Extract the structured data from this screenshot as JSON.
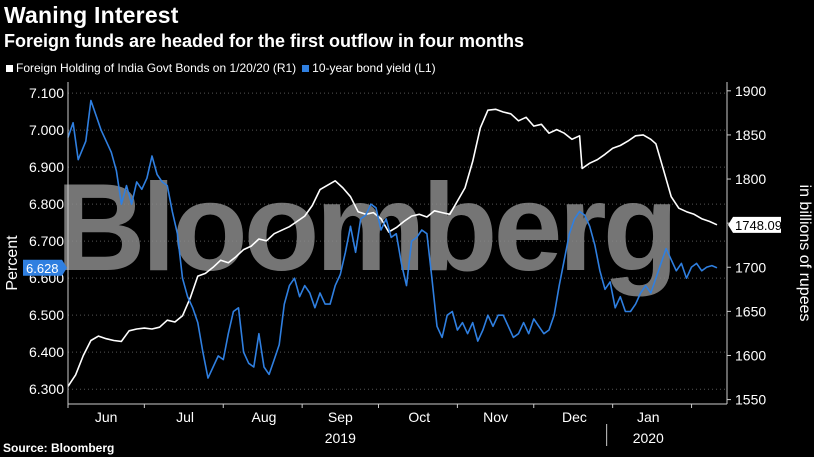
{
  "title": "Waning Interest",
  "subtitle": "Foreign funds are headed for the first outflow in four months",
  "source": "Source: Bloomberg",
  "watermark": "Bloomberg",
  "colors": {
    "background": "#000000",
    "holdings": "#ffffff",
    "yield": "#2f7fe0",
    "callout_bg": "#ffffff"
  },
  "chart_data": {
    "type": "line",
    "x_months": [
      "Jun",
      "Jul",
      "Aug",
      "Sep",
      "Oct",
      "Nov",
      "Dec",
      "Jan"
    ],
    "x_years": [
      "2019",
      "2020"
    ],
    "left_axis": {
      "label": "Percent",
      "ylim": [
        6.26,
        7.13
      ],
      "ticks": [
        "7.100",
        "7.000",
        "6.900",
        "6.800",
        "6.700",
        "6.600",
        "6.500",
        "6.400",
        "6.300"
      ],
      "tick_values": [
        7.1,
        7.0,
        6.9,
        6.8,
        6.7,
        6.6,
        6.5,
        6.4,
        6.3
      ]
    },
    "right_axis": {
      "label": "in billions of rupees",
      "ylim": [
        1545,
        1910
      ],
      "ticks": [
        "1900",
        "1850",
        "1800",
        "1750",
        "1700",
        "1650",
        "1600",
        "1550"
      ],
      "tick_values": [
        1900,
        1850,
        1800,
        1750,
        1700,
        1650,
        1600,
        1550
      ]
    },
    "x_range_days": [
      0,
      232
    ],
    "series": [
      {
        "name": "Foreign Holding of India Govt Bonds on 1/20/20 (R1)",
        "axis": "right",
        "last_value_label": "1748.09",
        "points": [
          [
            0,
            1565
          ],
          [
            3,
            1578
          ],
          [
            6,
            1600
          ],
          [
            9,
            1617
          ],
          [
            12,
            1622
          ],
          [
            15,
            1619
          ],
          [
            18,
            1617
          ],
          [
            21,
            1616
          ],
          [
            24,
            1628
          ],
          [
            27,
            1630
          ],
          [
            30,
            1631
          ],
          [
            33,
            1630
          ],
          [
            36,
            1632
          ],
          [
            39,
            1640
          ],
          [
            42,
            1638
          ],
          [
            45,
            1645
          ],
          [
            48,
            1665
          ],
          [
            51,
            1690
          ],
          [
            54,
            1693
          ],
          [
            57,
            1700
          ],
          [
            60,
            1708
          ],
          [
            63,
            1705
          ],
          [
            66,
            1712
          ],
          [
            69,
            1720
          ],
          [
            72,
            1724
          ],
          [
            75,
            1732
          ],
          [
            78,
            1730
          ],
          [
            81,
            1738
          ],
          [
            84,
            1742
          ],
          [
            87,
            1746
          ],
          [
            90,
            1752
          ],
          [
            93,
            1758
          ],
          [
            96,
            1770
          ],
          [
            99,
            1788
          ],
          [
            102,
            1793
          ],
          [
            105,
            1798
          ],
          [
            108,
            1790
          ],
          [
            111,
            1780
          ],
          [
            114,
            1763
          ],
          [
            117,
            1760
          ],
          [
            120,
            1762
          ],
          [
            123,
            1755
          ],
          [
            126,
            1740
          ],
          [
            129,
            1745
          ],
          [
            132,
            1752
          ],
          [
            135,
            1758
          ],
          [
            138,
            1760
          ],
          [
            141,
            1757
          ],
          [
            144,
            1764
          ],
          [
            147,
            1762
          ],
          [
            150,
            1760
          ],
          [
            153,
            1775
          ],
          [
            156,
            1790
          ],
          [
            159,
            1820
          ],
          [
            162,
            1858
          ],
          [
            165,
            1878
          ],
          [
            168,
            1879
          ],
          [
            171,
            1876
          ],
          [
            174,
            1874
          ],
          [
            177,
            1866
          ],
          [
            180,
            1870
          ],
          [
            183,
            1860
          ],
          [
            186,
            1862
          ],
          [
            189,
            1852
          ],
          [
            192,
            1856
          ],
          [
            195,
            1852
          ],
          [
            198,
            1845
          ],
          [
            201,
            1849
          ],
          [
            202,
            1812
          ],
          [
            205,
            1818
          ],
          [
            208,
            1822
          ],
          [
            211,
            1828
          ],
          [
            214,
            1835
          ],
          [
            217,
            1838
          ],
          [
            220,
            1843
          ],
          [
            223,
            1849
          ],
          [
            226,
            1850
          ],
          [
            229,
            1845
          ],
          [
            231,
            1840
          ],
          [
            234,
            1810
          ],
          [
            237,
            1780
          ],
          [
            240,
            1767
          ],
          [
            243,
            1763
          ],
          [
            246,
            1760
          ],
          [
            249,
            1755
          ],
          [
            252,
            1752
          ],
          [
            255,
            1748.09
          ]
        ]
      },
      {
        "name": "10-year bond yield (L1)",
        "axis": "left",
        "last_value_label": "6.628",
        "points": [
          [
            0,
            6.98
          ],
          [
            2,
            7.02
          ],
          [
            4,
            6.92
          ],
          [
            7,
            6.97
          ],
          [
            9,
            7.08
          ],
          [
            11,
            7.04
          ],
          [
            13,
            7.0
          ],
          [
            15,
            6.97
          ],
          [
            17,
            6.94
          ],
          [
            19,
            6.89
          ],
          [
            21,
            6.8
          ],
          [
            23,
            6.85
          ],
          [
            25,
            6.8
          ],
          [
            27,
            6.86
          ],
          [
            29,
            6.84
          ],
          [
            31,
            6.87
          ],
          [
            33,
            6.93
          ],
          [
            35,
            6.88
          ],
          [
            37,
            6.86
          ],
          [
            39,
            6.85
          ],
          [
            41,
            6.78
          ],
          [
            43,
            6.72
          ],
          [
            45,
            6.6
          ],
          [
            47,
            6.55
          ],
          [
            49,
            6.52
          ],
          [
            51,
            6.48
          ],
          [
            53,
            6.4
          ],
          [
            55,
            6.33
          ],
          [
            57,
            6.36
          ],
          [
            59,
            6.39
          ],
          [
            61,
            6.38
          ],
          [
            63,
            6.45
          ],
          [
            65,
            6.51
          ],
          [
            67,
            6.52
          ],
          [
            69,
            6.4
          ],
          [
            71,
            6.37
          ],
          [
            73,
            6.36
          ],
          [
            75,
            6.45
          ],
          [
            77,
            6.36
          ],
          [
            79,
            6.34
          ],
          [
            81,
            6.38
          ],
          [
            83,
            6.42
          ],
          [
            85,
            6.53
          ],
          [
            87,
            6.58
          ],
          [
            89,
            6.6
          ],
          [
            91,
            6.55
          ],
          [
            93,
            6.58
          ],
          [
            95,
            6.56
          ],
          [
            97,
            6.52
          ],
          [
            99,
            6.56
          ],
          [
            101,
            6.53
          ],
          [
            103,
            6.53
          ],
          [
            105,
            6.58
          ],
          [
            107,
            6.61
          ],
          [
            109,
            6.67
          ],
          [
            111,
            6.74
          ],
          [
            113,
            6.67
          ],
          [
            115,
            6.76
          ],
          [
            117,
            6.77
          ],
          [
            119,
            6.8
          ],
          [
            121,
            6.79
          ],
          [
            123,
            6.73
          ],
          [
            125,
            6.76
          ],
          [
            127,
            6.71
          ],
          [
            129,
            6.72
          ],
          [
            131,
            6.64
          ],
          [
            133,
            6.58
          ],
          [
            135,
            6.7
          ],
          [
            137,
            6.71
          ],
          [
            139,
            6.73
          ],
          [
            141,
            6.72
          ],
          [
            143,
            6.6
          ],
          [
            145,
            6.47
          ],
          [
            147,
            6.44
          ],
          [
            149,
            6.5
          ],
          [
            151,
            6.51
          ],
          [
            153,
            6.46
          ],
          [
            155,
            6.48
          ],
          [
            157,
            6.45
          ],
          [
            159,
            6.48
          ],
          [
            161,
            6.43
          ],
          [
            163,
            6.46
          ],
          [
            165,
            6.5
          ],
          [
            167,
            6.47
          ],
          [
            169,
            6.5
          ],
          [
            171,
            6.5
          ],
          [
            173,
            6.47
          ],
          [
            175,
            6.44
          ],
          [
            177,
            6.45
          ],
          [
            179,
            6.48
          ],
          [
            181,
            6.45
          ],
          [
            183,
            6.49
          ],
          [
            185,
            6.47
          ],
          [
            187,
            6.45
          ],
          [
            189,
            6.46
          ],
          [
            191,
            6.5
          ],
          [
            193,
            6.58
          ],
          [
            195,
            6.65
          ],
          [
            197,
            6.72
          ],
          [
            199,
            6.76
          ],
          [
            201,
            6.78
          ],
          [
            203,
            6.77
          ],
          [
            205,
            6.74
          ],
          [
            207,
            6.69
          ],
          [
            209,
            6.62
          ],
          [
            211,
            6.57
          ],
          [
            213,
            6.59
          ],
          [
            215,
            6.52
          ],
          [
            217,
            6.55
          ],
          [
            219,
            6.51
          ],
          [
            221,
            6.51
          ],
          [
            223,
            6.53
          ],
          [
            225,
            6.56
          ],
          [
            227,
            6.58
          ],
          [
            229,
            6.56
          ],
          [
            231,
            6.6
          ],
          [
            233,
            6.64
          ],
          [
            235,
            6.68
          ],
          [
            237,
            6.65
          ],
          [
            239,
            6.62
          ],
          [
            241,
            6.64
          ],
          [
            243,
            6.6
          ],
          [
            245,
            6.63
          ],
          [
            247,
            6.64
          ],
          [
            249,
            6.62
          ],
          [
            251,
            6.63
          ],
          [
            253,
            6.634
          ],
          [
            255,
            6.628
          ]
        ]
      }
    ]
  }
}
